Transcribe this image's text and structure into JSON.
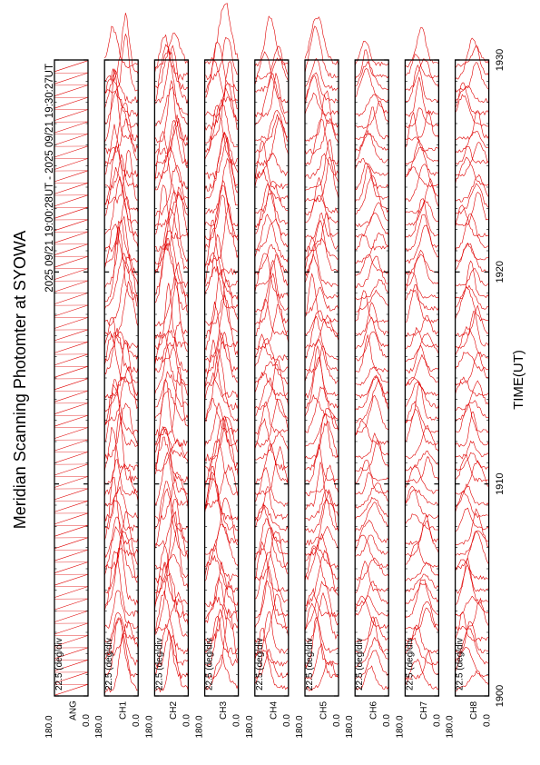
{
  "chart_data": {
    "type": "line",
    "title": "Meridian Scanning Photomter at SYOWA",
    "subtitle": "2025 09/21 19:00:28UT - 2025 09/21 19:30:27UT",
    "xlabel": "TIME(UT)",
    "x_ticks": [
      "1900",
      "1910",
      "1920",
      "1930"
    ],
    "xlim": [
      "1900",
      "1930"
    ],
    "scale_label": "22.5 (deg/div",
    "y_tick_top": "180.0",
    "y_tick_bottom": "0.0",
    "panels": [
      {
        "label": "ANG",
        "kind": "scan-angle sawtooth",
        "traces": 52
      },
      {
        "label": "CH1",
        "kind": "meridian scan profiles",
        "traces": 52
      },
      {
        "label": "CH2",
        "kind": "meridian scan profiles",
        "traces": 52
      },
      {
        "label": "CH3",
        "kind": "meridian scan profiles",
        "traces": 52
      },
      {
        "label": "CH4",
        "kind": "meridian scan profiles",
        "traces": 52
      },
      {
        "label": "CH5",
        "kind": "meridian scan profiles",
        "traces": 52
      },
      {
        "label": "CH6",
        "kind": "meridian scan profiles",
        "traces": 52
      },
      {
        "label": "CH7",
        "kind": "meridian scan profiles",
        "traces": 52
      },
      {
        "label": "CH8",
        "kind": "meridian scan profiles",
        "traces": 52
      }
    ],
    "series_color": "#e00000",
    "grid": false,
    "orientation": "rotated-90"
  }
}
